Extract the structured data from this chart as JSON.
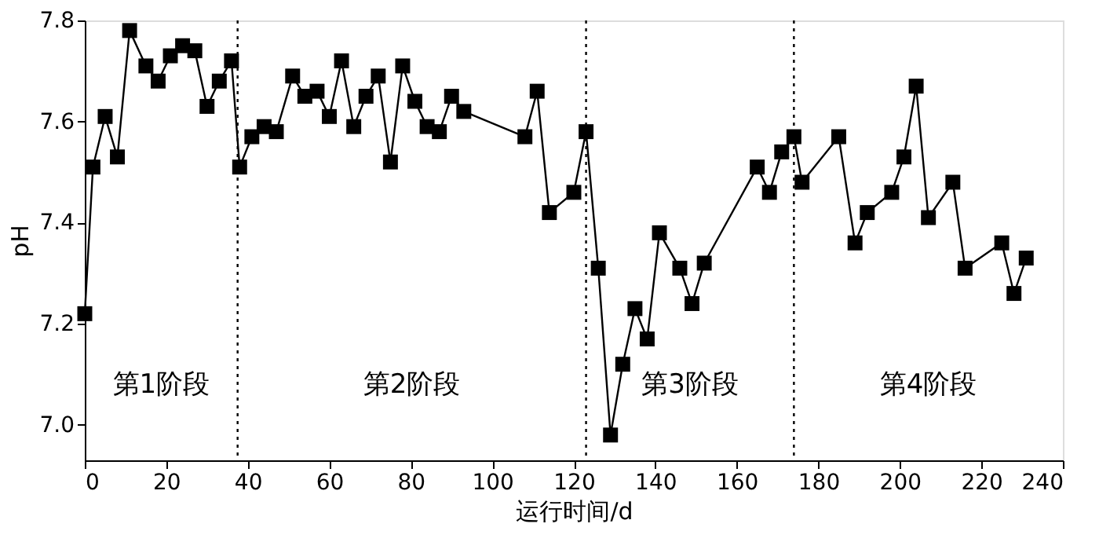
{
  "chart_data": {
    "type": "line",
    "xlabel": "运行时间/d",
    "ylabel": "pH",
    "x": [
      0,
      2,
      5,
      8,
      11,
      15,
      18,
      21,
      24,
      27,
      30,
      33,
      36,
      38,
      41,
      44,
      47,
      51,
      54,
      57,
      60,
      63,
      66,
      69,
      72,
      75,
      78,
      81,
      84,
      87,
      90,
      93,
      108,
      111,
      114,
      120,
      123,
      126,
      129,
      132,
      135,
      138,
      141,
      146,
      149,
      152,
      165,
      168,
      171,
      174,
      176,
      185,
      189,
      192,
      198,
      201,
      204,
      207,
      213,
      216,
      225,
      228,
      231
    ],
    "series": [
      {
        "color": "#000000",
        "values": [
          7.22,
          7.51,
          7.61,
          7.53,
          7.78,
          7.71,
          7.68,
          7.73,
          7.75,
          7.74,
          7.63,
          7.68,
          7.72,
          7.51,
          7.57,
          7.59,
          7.58,
          7.69,
          7.65,
          7.66,
          7.61,
          7.72,
          7.59,
          7.65,
          7.69,
          7.52,
          7.71,
          7.64,
          7.59,
          7.58,
          7.65,
          7.62,
          7.57,
          7.66,
          7.42,
          7.46,
          7.58,
          7.31,
          6.98,
          7.12,
          7.23,
          7.17,
          7.38,
          7.31,
          7.24,
          7.32,
          7.51,
          7.46,
          7.54,
          7.57,
          7.48,
          7.57,
          7.36,
          7.42,
          7.46,
          7.53,
          7.67,
          7.41,
          7.48,
          7.31,
          7.36,
          7.26,
          7.33
        ]
      }
    ],
    "xlim": [
      0,
      240
    ],
    "xticks": [
      0,
      20,
      40,
      60,
      80,
      100,
      120,
      140,
      160,
      180,
      200,
      220,
      240
    ],
    "ylim": [
      6.93,
      7.8
    ],
    "yticks": [
      {
        "value": 7.0,
        "label": "7.0"
      },
      {
        "value": 7.2,
        "label": "7.2"
      },
      {
        "value": 7.4,
        "label": "7.4"
      },
      {
        "value": 7.6,
        "label": "7.6"
      },
      {
        "value": 7.8,
        "label": "7.8"
      }
    ],
    "marker": "square",
    "line_style": "solid",
    "grid": false,
    "ref_lines": [
      {
        "axis": "x",
        "value": 37.5,
        "line_style": "dotted",
        "color": "#000000"
      },
      {
        "axis": "x",
        "value": 123,
        "line_style": "dotted",
        "color": "#000000"
      },
      {
        "axis": "x",
        "value": 174,
        "line_style": "dotted",
        "color": "#000000"
      }
    ],
    "annotations": [
      "第1阶段",
      "第2阶段",
      "第3阶段",
      "第4阶段"
    ]
  }
}
